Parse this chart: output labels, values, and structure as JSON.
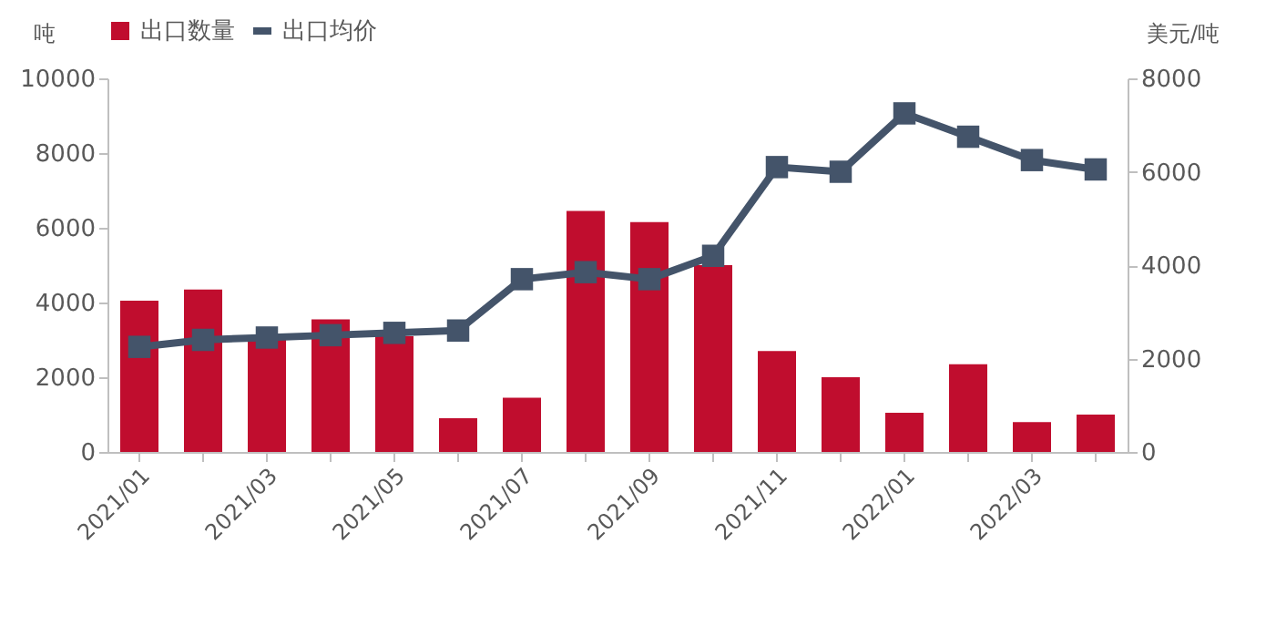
{
  "chart_data": {
    "type": "bar",
    "categories": [
      "2021/01",
      null,
      "2021/03",
      null,
      "2021/05",
      null,
      "2021/07",
      null,
      "2021/09",
      null,
      "2021/11",
      null,
      "2022/01",
      null,
      "2022/03",
      null
    ],
    "ylabel": "吨",
    "y2label": "美元/吨",
    "ylim": [
      0,
      10000
    ],
    "yticks": [
      0,
      2000,
      4000,
      6000,
      8000,
      10000
    ],
    "y2lim": [
      0,
      8000
    ],
    "y2ticks": [
      0,
      2000,
      4000,
      6000,
      8000
    ],
    "series": [
      {
        "name": "出口数量",
        "color": "#c00d2e",
        "values": [
          4050,
          4350,
          3000,
          3550,
          3100,
          900,
          1450,
          6450,
          6150,
          5000,
          2700,
          2000,
          1050,
          2350,
          800,
          1000
        ]
      },
      {
        "name": "出口均价",
        "type": "line",
        "axis": "y2",
        "color": "#44546a",
        "values": [
          2250,
          2400,
          2450,
          2500,
          2550,
          2600,
          3700,
          3850,
          3700,
          4200,
          6100,
          6000,
          7250,
          6750,
          6250,
          6050
        ]
      }
    ],
    "marker": "square",
    "grid": false,
    "legend": "top"
  }
}
